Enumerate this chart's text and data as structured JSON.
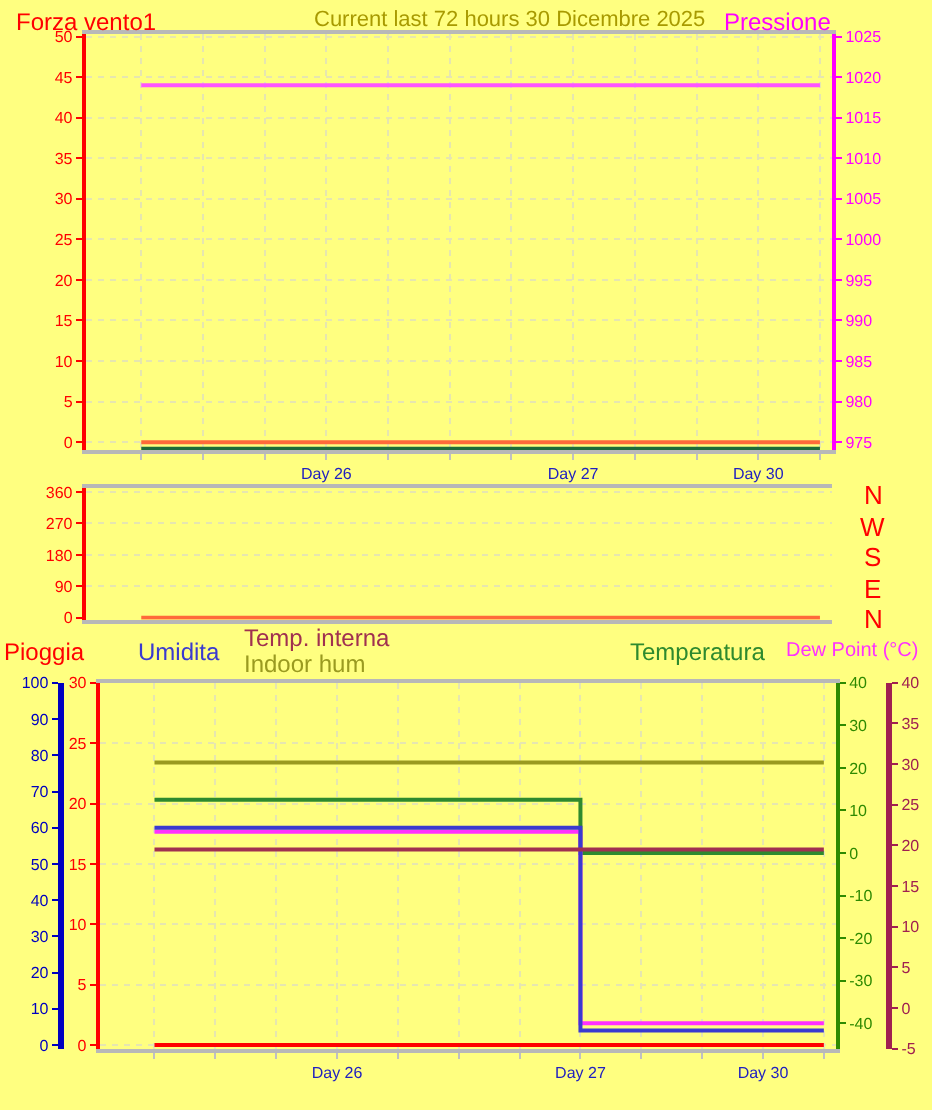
{
  "chart_data": [
    {
      "type": "line",
      "title": "Current last 72 hours 30 Dicembre 2025",
      "ylabel": "Forza vento1",
      "y2label": "Pressione",
      "categories": [
        null,
        null,
        null,
        "Day 26",
        null,
        null,
        null,
        "Day 27",
        null,
        null,
        "Day 30",
        null
      ],
      "ylim": [
        -1,
        50.3
      ],
      "yticks": [
        0,
        5,
        10,
        15,
        20,
        25,
        30,
        35,
        40,
        45,
        50
      ],
      "y2lim": [
        974,
        1025.3
      ],
      "y2ticks": [
        975,
        980,
        985,
        990,
        995,
        1000,
        1005,
        1010,
        1015,
        1020,
        1025
      ],
      "grid": true,
      "series": [
        {
          "color": "#ff6a3a",
          "values": [
            0,
            0,
            0,
            0,
            0,
            0,
            0,
            0,
            0,
            0,
            0,
            0
          ]
        },
        {
          "color": "#ff55ff",
          "values": [
            1019,
            1019,
            1019,
            1019,
            1019,
            1019,
            1019,
            1019,
            1019,
            1019,
            1019,
            1019
          ],
          "axis": "y2"
        },
        {
          "color": "#1f6b3a",
          "values": [
            -0.8,
            -0.8,
            -0.8,
            -0.8,
            -0.8,
            -0.8,
            -0.8,
            -0.8,
            -0.8,
            -0.8,
            -0.8,
            -0.8
          ]
        }
      ]
    },
    {
      "type": "line",
      "categories": [
        null,
        null,
        null,
        null,
        null,
        null,
        null,
        null,
        null,
        null,
        null,
        null
      ],
      "ylim": [
        -5,
        370
      ],
      "yticks": [
        0,
        90,
        180,
        270,
        360
      ],
      "annotations": [
        "N",
        "W",
        "S",
        "E",
        "N"
      ],
      "tick_labels": "y",
      "grid": "y",
      "series": [
        {
          "color": "#ff6a3a",
          "values": [
            0,
            0,
            0,
            0,
            0,
            0,
            0,
            0,
            0,
            0,
            0,
            0
          ]
        }
      ]
    },
    {
      "type": "step",
      "categories": [
        null,
        null,
        null,
        "Day 26",
        null,
        null,
        null,
        "Day 27",
        null,
        null,
        "Day 30",
        null
      ],
      "ylim": [
        -0.3,
        30
      ],
      "yticks": [
        0,
        5,
        10,
        15,
        20,
        25,
        30
      ],
      "y2lim": [
        -46,
        40
      ],
      "y2ticks": [
        -40,
        -30,
        -20,
        -10,
        0,
        10,
        20,
        30,
        40
      ],
      "y3lim": [
        -1,
        100
      ],
      "y3ticks": [
        0,
        10,
        20,
        30,
        40,
        50,
        60,
        70,
        80,
        90,
        100
      ],
      "grid": true,
      "series": [
        {
          "name": "Pioggia",
          "color": "#ff0000",
          "values": [
            0,
            0,
            0,
            0,
            0,
            0,
            0,
            0,
            0,
            0,
            0,
            0
          ]
        },
        {
          "name": "Umidita",
          "color": "#3a3ad0",
          "values": [
            60,
            60,
            60,
            60,
            60,
            60,
            60,
            4,
            4,
            4,
            4,
            4
          ],
          "axis": "y3"
        },
        {
          "name": "Indoor hum",
          "color": "#9a9a20",
          "values": [
            78,
            78,
            78,
            78,
            78,
            78,
            78,
            78,
            78,
            78,
            78,
            78
          ],
          "axis": "y3"
        },
        {
          "name": "Temperatura",
          "color": "#2e8a2e",
          "values": [
            12.5,
            12.5,
            12.5,
            12.5,
            12.5,
            12.5,
            12.5,
            0,
            0,
            0,
            0,
            0
          ],
          "axis": "y2"
        },
        {
          "name": "Dew Point (°C)",
          "color": "#ff30ff",
          "values": [
            5,
            5,
            5,
            5,
            5,
            5,
            5,
            -40,
            -40,
            -40,
            -40,
            -40
          ],
          "axis": "y2"
        }
      ]
    },
    {
      "type": "step",
      "categories": [
        null,
        null,
        null,
        null,
        null,
        null,
        null,
        null,
        null,
        null,
        null,
        null
      ],
      "ylim": [
        -5,
        40
      ],
      "yticks": [
        -5,
        0,
        5,
        10,
        15,
        20,
        25,
        30,
        35,
        40
      ],
      "tick_labels": "y",
      "series": [
        {
          "name": "Temp. interna",
          "color": "#a03050",
          "values": [
            19.5,
            19.5,
            19.5,
            19.5,
            19.5,
            19.5,
            19.5,
            19.5,
            19.5,
            19.5,
            19.5,
            19.5
          ]
        }
      ]
    }
  ]
}
